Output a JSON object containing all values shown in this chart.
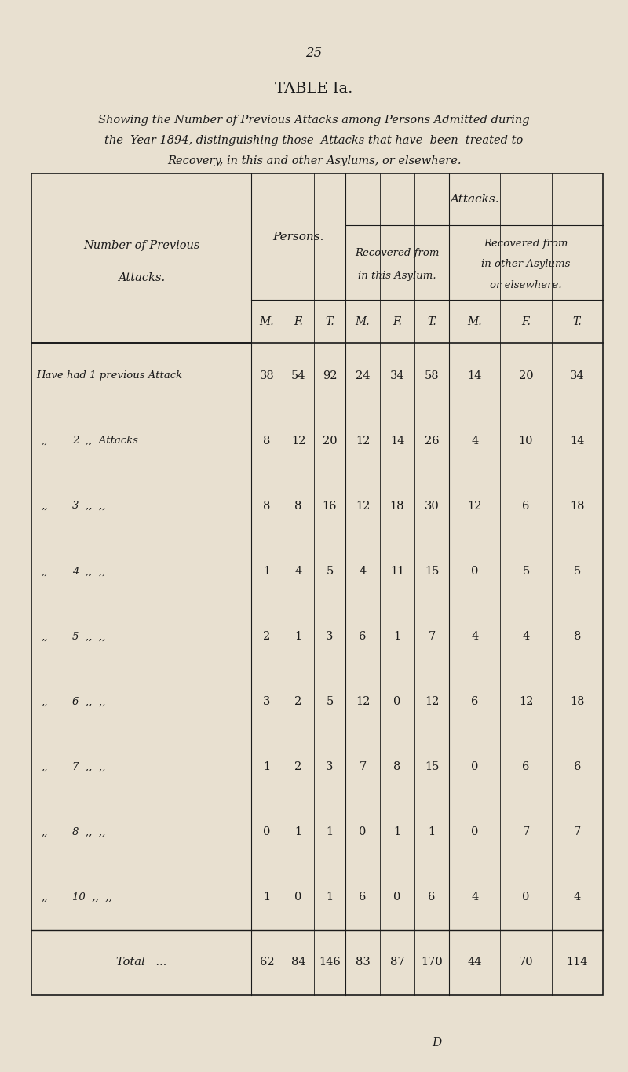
{
  "page_number": "25",
  "table_title": "TABLE Ia.",
  "subtitle_lines": [
    "Showing the Number of Previous Attacks among Persons Admitted during",
    "the  Year 1894, distinguishing those  Attacks that have  been  treated to",
    "Recovery, in this and other Asylums, or elsewhere."
  ],
  "footer_letter": "D",
  "bg_color": "#e8e0d0",
  "text_color": "#1a1a1a",
  "col1_header_line1": "Number of Previous",
  "col1_header_line2": "Attacks.",
  "col2_header": "Persons.",
  "col3_header_line1": "Recovered from",
  "col3_header_line2": "in this Asylum.",
  "col4_header_line1": "Recovered from",
  "col4_header_line2": "in other Asylums",
  "col4_header_line3": "or elsewhere.",
  "attacks_group_header": "Attacks.",
  "sub_headers": [
    "M.",
    "F.",
    "T.",
    "M.",
    "F.",
    "T.",
    "M.",
    "F.",
    "T."
  ],
  "rows": [
    {
      "label1": "Have had 1 previous Attack",
      "label2": "",
      "persons": [
        38,
        54,
        92
      ],
      "this_asylum": [
        24,
        34,
        58
      ],
      "other": [
        14,
        20,
        34
      ]
    },
    {
      "label1": ",,",
      "label2": "2  ,,  Attacks",
      "persons": [
        8,
        12,
        20
      ],
      "this_asylum": [
        12,
        14,
        26
      ],
      "other": [
        4,
        10,
        14
      ]
    },
    {
      "label1": ",,",
      "label2": "3  ,,  ,,",
      "persons": [
        8,
        8,
        16
      ],
      "this_asylum": [
        12,
        18,
        30
      ],
      "other": [
        12,
        6,
        18
      ]
    },
    {
      "label1": ",,",
      "label2": "4  ,,  ,,",
      "persons": [
        1,
        4,
        5
      ],
      "this_asylum": [
        4,
        11,
        15
      ],
      "other": [
        0,
        5,
        5
      ]
    },
    {
      "label1": ",,",
      "label2": "5  ,,  ,,",
      "persons": [
        2,
        1,
        3
      ],
      "this_asylum": [
        6,
        1,
        7
      ],
      "other": [
        4,
        4,
        8
      ]
    },
    {
      "label1": ",,",
      "label2": "6  ,,  ,,",
      "persons": [
        3,
        2,
        5
      ],
      "this_asylum": [
        12,
        0,
        12
      ],
      "other": [
        6,
        12,
        18
      ]
    },
    {
      "label1": ",,",
      "label2": "7  ,,  ,,",
      "persons": [
        1,
        2,
        3
      ],
      "this_asylum": [
        7,
        8,
        15
      ],
      "other": [
        0,
        6,
        6
      ]
    },
    {
      "label1": ",,",
      "label2": "8  ,,  ,,",
      "persons": [
        0,
        1,
        1
      ],
      "this_asylum": [
        0,
        1,
        1
      ],
      "other": [
        0,
        7,
        7
      ]
    },
    {
      "label1": ",,",
      "label2": "10  ,,  ,,",
      "persons": [
        1,
        0,
        1
      ],
      "this_asylum": [
        6,
        0,
        6
      ],
      "other": [
        4,
        0,
        4
      ]
    }
  ],
  "total_row": {
    "label": "Total   ...",
    "persons": [
      62,
      84,
      146
    ],
    "this_asylum": [
      83,
      87,
      170
    ],
    "other": [
      44,
      70,
      114
    ]
  }
}
